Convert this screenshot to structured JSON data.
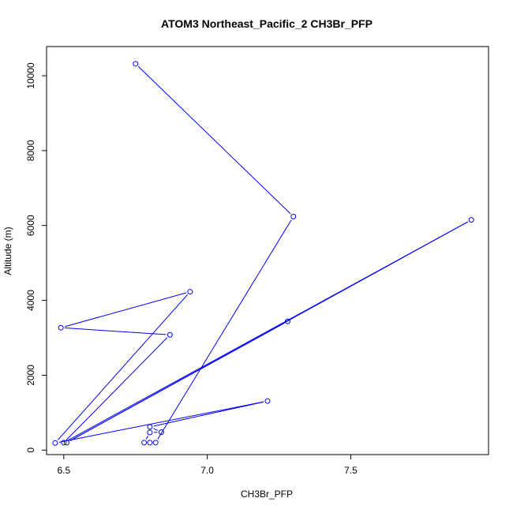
{
  "chart_data": {
    "type": "line",
    "title": "ATOM3 Northeast_Pacific_2 CH3Br_PFP",
    "xlabel": "CH3Br_PFP",
    "ylabel": "Altitude (m)",
    "xlim": [
      6.44,
      7.98
    ],
    "ylim": [
      -120,
      10780
    ],
    "x_ticks": [
      6.5,
      7.0,
      7.5
    ],
    "x_tick_labels": [
      "6.5",
      "7.0",
      "7.5"
    ],
    "y_ticks": [
      0,
      2000,
      4000,
      6000,
      8000,
      10000
    ],
    "y_tick_labels": [
      "0",
      "2000",
      "4000",
      "6000",
      "8000",
      "10000"
    ],
    "grid": false,
    "legend": "none",
    "series": [
      {
        "color": "#0000ff",
        "marker": "open-circle",
        "points": [
          {
            "x": 6.75,
            "y": 10320
          },
          {
            "x": 7.3,
            "y": 6240
          },
          {
            "x": 6.82,
            "y": 200
          },
          {
            "x": 6.8,
            "y": 200
          },
          {
            "x": 6.78,
            "y": 200
          },
          {
            "x": 6.8,
            "y": 470
          },
          {
            "x": 6.84,
            "y": 480
          },
          {
            "x": 6.8,
            "y": 620
          },
          {
            "x": 7.21,
            "y": 1310
          },
          {
            "x": 6.47,
            "y": 190
          },
          {
            "x": 6.94,
            "y": 4230
          },
          {
            "x": 6.49,
            "y": 3270
          },
          {
            "x": 6.87,
            "y": 3080
          },
          {
            "x": 6.5,
            "y": 200
          },
          {
            "x": 7.92,
            "y": 6150
          },
          {
            "x": 6.51,
            "y": 200
          },
          {
            "x": 7.28,
            "y": 3440
          }
        ]
      }
    ]
  }
}
